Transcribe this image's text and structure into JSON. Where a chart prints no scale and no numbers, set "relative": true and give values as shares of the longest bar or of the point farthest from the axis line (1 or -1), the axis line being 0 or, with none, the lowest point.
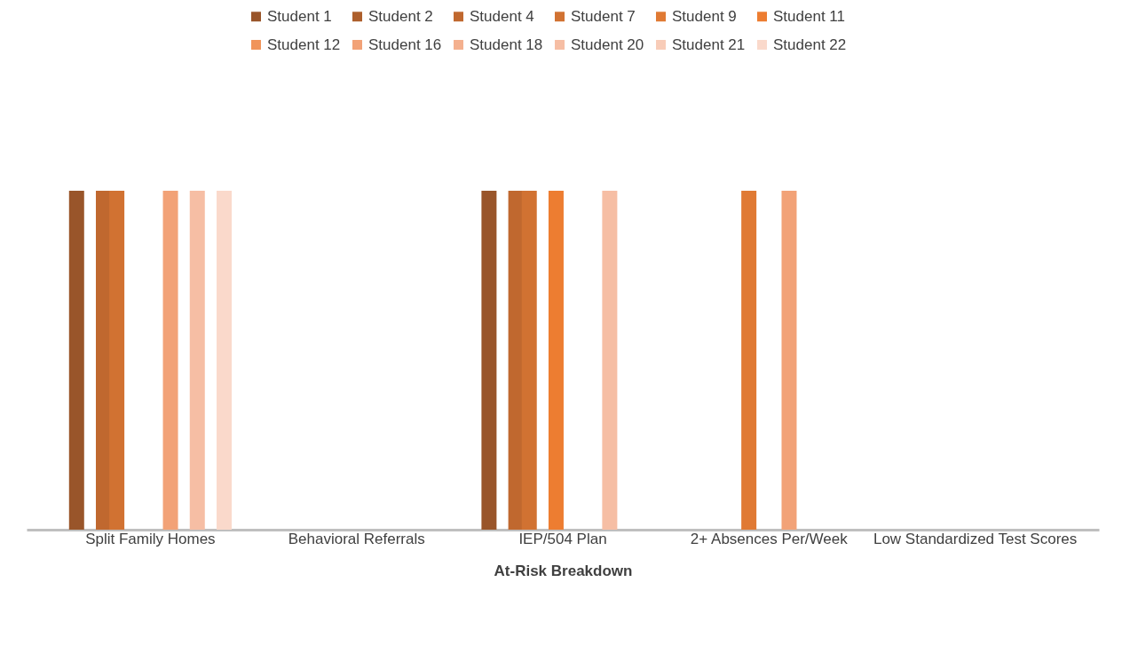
{
  "chart_data": {
    "type": "bar",
    "relative": true,
    "xlabel": "At-Risk Breakdown",
    "legend": "top",
    "grid": false,
    "categories": [
      "Split Family Homes",
      "Behavioral Referrals",
      "IEP/504 Plan",
      "2+ Absences Per/Week",
      "Low Standardized Test Scores"
    ],
    "series": [
      {
        "name": "Student 1",
        "color": "#99552a",
        "values": [
          1,
          null,
          1,
          null,
          null
        ]
      },
      {
        "name": "Student 2",
        "color": "#ad5f2c",
        "values": [
          null,
          null,
          null,
          null,
          null
        ]
      },
      {
        "name": "Student 4",
        "color": "#c0682f",
        "values": [
          1,
          null,
          1,
          null,
          null
        ]
      },
      {
        "name": "Student 7",
        "color": "#d17232",
        "values": [
          1,
          null,
          1,
          null,
          null
        ]
      },
      {
        "name": "Student 9",
        "color": "#e07a34",
        "values": [
          null,
          null,
          null,
          1,
          null
        ]
      },
      {
        "name": "Student 11",
        "color": "#ed7d31",
        "values": [
          null,
          null,
          1,
          null,
          null
        ]
      },
      {
        "name": "Student 12",
        "color": "#f0945a",
        "values": [
          null,
          null,
          null,
          null,
          null
        ]
      },
      {
        "name": "Student 16",
        "color": "#f2a277",
        "values": [
          1,
          null,
          null,
          1,
          null
        ]
      },
      {
        "name": "Student 18",
        "color": "#f4b08e",
        "values": [
          null,
          null,
          null,
          null,
          null
        ]
      },
      {
        "name": "Student 20",
        "color": "#f6bea4",
        "values": [
          1,
          null,
          1,
          null,
          null
        ]
      },
      {
        "name": "Student 21",
        "color": "#f8ccb8",
        "values": [
          null,
          null,
          null,
          null,
          null
        ]
      },
      {
        "name": "Student 22",
        "color": "#fad9cb",
        "values": [
          1,
          null,
          null,
          null,
          null
        ]
      }
    ]
  }
}
